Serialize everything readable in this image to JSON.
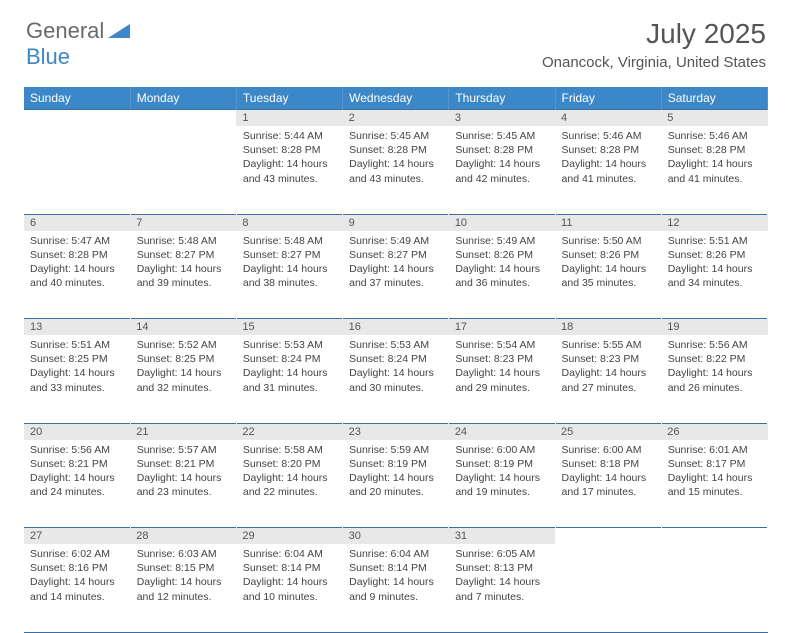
{
  "brand": {
    "word1": "General",
    "word2": "Blue",
    "text_color": "#6a6a6a",
    "accent_color": "#3b87c8"
  },
  "title": "July 2025",
  "location": "Onancock, Virginia, United States",
  "header_bg": "#3b87c8",
  "daynum_bg": "#e8e8e8",
  "border_color": "#3b6fa0",
  "weekdays": [
    "Sunday",
    "Monday",
    "Tuesday",
    "Wednesday",
    "Thursday",
    "Friday",
    "Saturday"
  ],
  "weeks": [
    [
      null,
      null,
      {
        "n": "1",
        "sr": "5:44 AM",
        "ss": "8:28 PM",
        "dl": "14 hours and 43 minutes."
      },
      {
        "n": "2",
        "sr": "5:45 AM",
        "ss": "8:28 PM",
        "dl": "14 hours and 43 minutes."
      },
      {
        "n": "3",
        "sr": "5:45 AM",
        "ss": "8:28 PM",
        "dl": "14 hours and 42 minutes."
      },
      {
        "n": "4",
        "sr": "5:46 AM",
        "ss": "8:28 PM",
        "dl": "14 hours and 41 minutes."
      },
      {
        "n": "5",
        "sr": "5:46 AM",
        "ss": "8:28 PM",
        "dl": "14 hours and 41 minutes."
      }
    ],
    [
      {
        "n": "6",
        "sr": "5:47 AM",
        "ss": "8:28 PM",
        "dl": "14 hours and 40 minutes."
      },
      {
        "n": "7",
        "sr": "5:48 AM",
        "ss": "8:27 PM",
        "dl": "14 hours and 39 minutes."
      },
      {
        "n": "8",
        "sr": "5:48 AM",
        "ss": "8:27 PM",
        "dl": "14 hours and 38 minutes."
      },
      {
        "n": "9",
        "sr": "5:49 AM",
        "ss": "8:27 PM",
        "dl": "14 hours and 37 minutes."
      },
      {
        "n": "10",
        "sr": "5:49 AM",
        "ss": "8:26 PM",
        "dl": "14 hours and 36 minutes."
      },
      {
        "n": "11",
        "sr": "5:50 AM",
        "ss": "8:26 PM",
        "dl": "14 hours and 35 minutes."
      },
      {
        "n": "12",
        "sr": "5:51 AM",
        "ss": "8:26 PM",
        "dl": "14 hours and 34 minutes."
      }
    ],
    [
      {
        "n": "13",
        "sr": "5:51 AM",
        "ss": "8:25 PM",
        "dl": "14 hours and 33 minutes."
      },
      {
        "n": "14",
        "sr": "5:52 AM",
        "ss": "8:25 PM",
        "dl": "14 hours and 32 minutes."
      },
      {
        "n": "15",
        "sr": "5:53 AM",
        "ss": "8:24 PM",
        "dl": "14 hours and 31 minutes."
      },
      {
        "n": "16",
        "sr": "5:53 AM",
        "ss": "8:24 PM",
        "dl": "14 hours and 30 minutes."
      },
      {
        "n": "17",
        "sr": "5:54 AM",
        "ss": "8:23 PM",
        "dl": "14 hours and 29 minutes."
      },
      {
        "n": "18",
        "sr": "5:55 AM",
        "ss": "8:23 PM",
        "dl": "14 hours and 27 minutes."
      },
      {
        "n": "19",
        "sr": "5:56 AM",
        "ss": "8:22 PM",
        "dl": "14 hours and 26 minutes."
      }
    ],
    [
      {
        "n": "20",
        "sr": "5:56 AM",
        "ss": "8:21 PM",
        "dl": "14 hours and 24 minutes."
      },
      {
        "n": "21",
        "sr": "5:57 AM",
        "ss": "8:21 PM",
        "dl": "14 hours and 23 minutes."
      },
      {
        "n": "22",
        "sr": "5:58 AM",
        "ss": "8:20 PM",
        "dl": "14 hours and 22 minutes."
      },
      {
        "n": "23",
        "sr": "5:59 AM",
        "ss": "8:19 PM",
        "dl": "14 hours and 20 minutes."
      },
      {
        "n": "24",
        "sr": "6:00 AM",
        "ss": "8:19 PM",
        "dl": "14 hours and 19 minutes."
      },
      {
        "n": "25",
        "sr": "6:00 AM",
        "ss": "8:18 PM",
        "dl": "14 hours and 17 minutes."
      },
      {
        "n": "26",
        "sr": "6:01 AM",
        "ss": "8:17 PM",
        "dl": "14 hours and 15 minutes."
      }
    ],
    [
      {
        "n": "27",
        "sr": "6:02 AM",
        "ss": "8:16 PM",
        "dl": "14 hours and 14 minutes."
      },
      {
        "n": "28",
        "sr": "6:03 AM",
        "ss": "8:15 PM",
        "dl": "14 hours and 12 minutes."
      },
      {
        "n": "29",
        "sr": "6:04 AM",
        "ss": "8:14 PM",
        "dl": "14 hours and 10 minutes."
      },
      {
        "n": "30",
        "sr": "6:04 AM",
        "ss": "8:14 PM",
        "dl": "14 hours and 9 minutes."
      },
      {
        "n": "31",
        "sr": "6:05 AM",
        "ss": "8:13 PM",
        "dl": "14 hours and 7 minutes."
      },
      null,
      null
    ]
  ],
  "labels": {
    "sunrise": "Sunrise:",
    "sunset": "Sunset:",
    "daylight": "Daylight:"
  }
}
